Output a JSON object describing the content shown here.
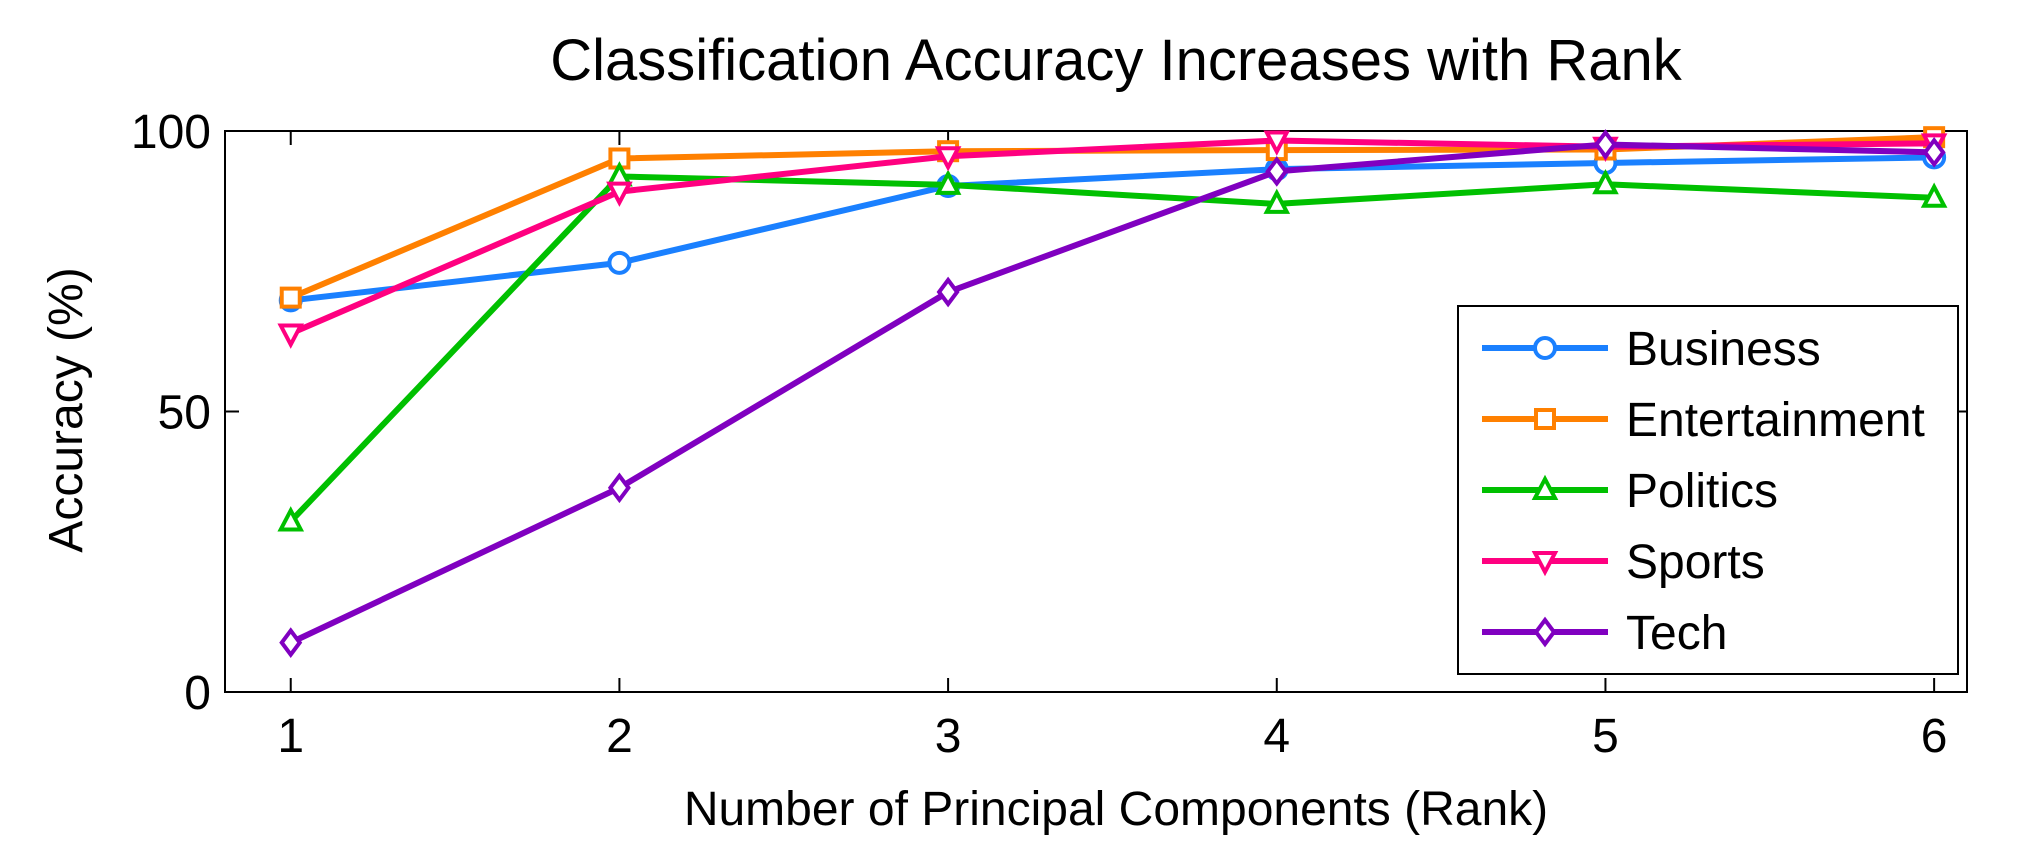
{
  "chart_data": {
    "type": "line",
    "title": "Classification Accuracy Increases with Rank",
    "xlabel": "Number of Principal Components (Rank)",
    "ylabel": "Accuracy (%)",
    "x": [
      1,
      2,
      3,
      4,
      5,
      6
    ],
    "xlim": [
      0.8,
      6.1
    ],
    "ylim": [
      0,
      100
    ],
    "xticks": [
      "1",
      "2",
      "3",
      "4",
      "5",
      "6"
    ],
    "yticks": [
      "0",
      "50",
      "100"
    ],
    "ytick_values": [
      0,
      50,
      100
    ],
    "grid": false,
    "legend_position": "bottom-right",
    "series": [
      {
        "name": "Business",
        "color": "#1a80ff",
        "marker": "circle",
        "values": [
          69.8,
          76.5,
          90.2,
          93.2,
          94.3,
          95.3
        ]
      },
      {
        "name": "Entertainment",
        "color": "#ff8000",
        "marker": "square",
        "values": [
          70.3,
          95.1,
          96.4,
          96.6,
          96.7,
          98.9
        ]
      },
      {
        "name": "Politics",
        "color": "#00c000",
        "marker": "triangle-up",
        "values": [
          30.4,
          91.9,
          90.4,
          87.0,
          90.5,
          88.1
        ]
      },
      {
        "name": "Sports",
        "color": "#ff0080",
        "marker": "triangle-down",
        "values": [
          63.9,
          89.2,
          95.5,
          98.3,
          97.2,
          97.8
        ]
      },
      {
        "name": "Tech",
        "color": "#8000c0",
        "marker": "diamond",
        "values": [
          8.8,
          36.4,
          71.3,
          92.8,
          97.6,
          96.2
        ]
      }
    ]
  }
}
